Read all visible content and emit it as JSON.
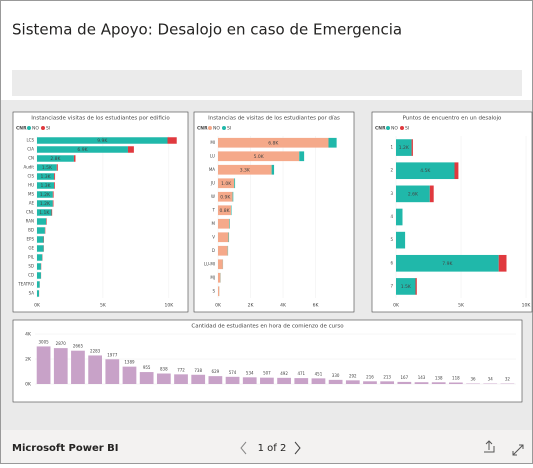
{
  "header": {
    "title": "Sistema de Apoyo: Desalojo en caso de Emergencia"
  },
  "footer": {
    "brand": "Microsoft Power BI",
    "pager": "1 of 2"
  },
  "chart_data": [
    {
      "type": "hbar",
      "title": "Instanciasde visitas de los estudiantes por edificio",
      "legend_title": "CNR",
      "categories": [
        "LCS",
        "CIA",
        "CN",
        "Audit",
        "CIS",
        "HU",
        "MS",
        "AE",
        "CNL",
        "RAN",
        "BD",
        "EPS",
        "GE",
        "PIL",
        "SD",
        "CD",
        "TEATRO",
        "SA"
      ],
      "series": [
        {
          "name": "NO",
          "color": "#20b8aa",
          "values": [
            9900,
            6900,
            2800,
            1500,
            1300,
            1300,
            1200,
            1200,
            1100,
            700,
            600,
            500,
            500,
            400,
            300,
            300,
            200,
            150
          ],
          "value_labels": [
            "9.9K",
            "6.9K",
            "2.8K",
            "1.5K",
            "1.3K",
            "1.3K",
            "1.2K",
            "1.2K",
            "1.1K",
            null,
            null,
            null,
            null,
            null,
            null,
            null,
            null,
            null
          ]
        },
        {
          "name": "SI",
          "color": "#e0393e",
          "values": [
            700,
            450,
            120,
            80,
            70,
            60,
            60,
            50,
            50,
            40,
            30,
            30,
            20,
            20,
            20,
            10,
            10,
            10
          ]
        }
      ],
      "xlim": [
        0,
        11000
      ],
      "xticks": [
        {
          "value": 0,
          "label": "0K"
        },
        {
          "value": 5000,
          "label": "5K"
        },
        {
          "value": 10000,
          "label": "10K"
        }
      ]
    },
    {
      "type": "hbar",
      "title": "Instancias de visitas de los estudiantes por días",
      "legend_title": "CNR",
      "categories": [
        "MI",
        "LU",
        "MA",
        "JU",
        "W",
        "T",
        "M",
        "V",
        "D",
        "LU-MI",
        "MJ",
        "S"
      ],
      "series": [
        {
          "name": "NO",
          "color": "#f5a98a",
          "values": [
            6800,
            5000,
            3300,
            1000,
            900,
            800,
            700,
            650,
            600,
            300,
            150,
            80
          ],
          "value_labels": [
            "6.8K",
            "5.0K",
            "3.3K",
            "1.0K",
            "0.9K",
            "0.8K",
            null,
            null,
            null,
            null,
            null,
            null
          ]
        },
        {
          "name": "SI",
          "color": "#20b8aa",
          "values": [
            500,
            300,
            150,
            50,
            40,
            30,
            30,
            30,
            20,
            10,
            10,
            5
          ]
        }
      ],
      "xlim": [
        0,
        8000
      ],
      "xticks": [
        {
          "value": 0,
          "label": "0K"
        },
        {
          "value": 2000,
          "label": "2K"
        },
        {
          "value": 4000,
          "label": "4K"
        },
        {
          "value": 6000,
          "label": "6K"
        }
      ]
    },
    {
      "type": "hbar",
      "title": "Puntos de encuentro en un desalojo",
      "legend_title": "CNR",
      "categories": [
        "1",
        "2",
        "3",
        "4",
        "5",
        "6",
        "7"
      ],
      "series": [
        {
          "name": "NO",
          "color": "#20b8aa",
          "values": [
            1200,
            4500,
            2600,
            500,
            700,
            7900,
            1500
          ],
          "value_labels": [
            "1.2K",
            "4.5K",
            "2.6K",
            null,
            null,
            "7.9K",
            "1.5K"
          ]
        },
        {
          "name": "SI",
          "color": "#e0393e",
          "values": [
            100,
            300,
            300,
            0,
            0,
            600,
            100
          ]
        }
      ],
      "xlim": [
        0,
        10000
      ],
      "xticks": [
        {
          "value": 0,
          "label": "0K"
        },
        {
          "value": 5000,
          "label": "5K"
        },
        {
          "value": 10000,
          "label": "10K"
        }
      ]
    },
    {
      "type": "bar",
      "title": "Cantidad de estudiantes en hora de comienzo de curso",
      "color": "#c8a2c8",
      "categories": [
        null,
        null,
        null,
        null,
        null,
        null,
        null,
        null,
        null,
        null,
        null,
        null,
        null,
        null,
        null,
        null,
        null,
        null,
        null,
        null,
        null,
        null,
        null,
        null,
        null,
        null,
        null,
        null
      ],
      "values": [
        3005,
        2870,
        2665,
        2283,
        1977,
        1389,
        955,
        838,
        772,
        738,
        629,
        574,
        534,
        507,
        492,
        471,
        451,
        330,
        292,
        216,
        213,
        167,
        143,
        138,
        118,
        36,
        34,
        32
      ],
      "ylim": [
        0,
        4000
      ],
      "yticks": [
        {
          "value": 0,
          "label": "0K"
        },
        {
          "value": 2000,
          "label": "2K"
        },
        {
          "value": 4000,
          "label": "4K"
        }
      ]
    }
  ]
}
